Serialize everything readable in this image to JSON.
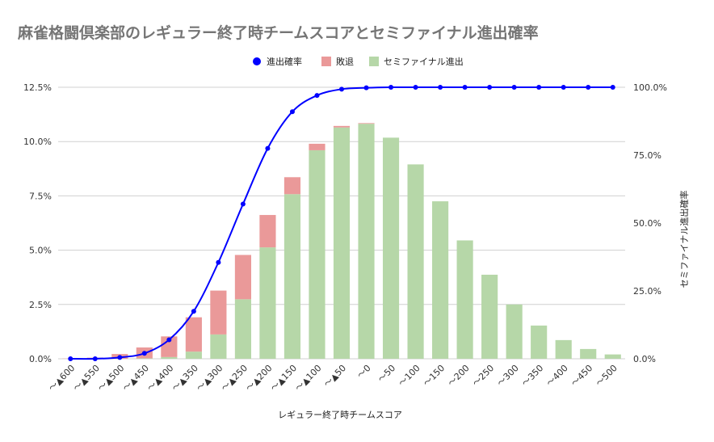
{
  "chart_data": {
    "type": "bar",
    "stacked": true,
    "title": "麻雀格闘倶楽部のレギュラー終了時チームスコアとセミファイナル進出確率",
    "xlabel": "レギュラー終了時チームスコア",
    "ylabel_left": "",
    "ylabel_right": "セミファイナル進出確率",
    "ylim_left": [
      0,
      12.5
    ],
    "ylim_right": [
      0,
      100
    ],
    "left_ticks": [
      "0.0%",
      "2.5%",
      "5.0%",
      "7.5%",
      "10.0%",
      "12.5%"
    ],
    "right_ticks": [
      "0.0%",
      "25.0%",
      "50.0%",
      "75.0%",
      "100.0%"
    ],
    "legend_position": "top",
    "categories": [
      "～▲600",
      "～▲550",
      "～▲500",
      "～▲450",
      "～▲400",
      "～▲350",
      "～▲300",
      "～▲250",
      "～▲200",
      "～▲150",
      "～▲100",
      "～▲50",
      "～0",
      "～50",
      "～100",
      "～150",
      "～200",
      "～250",
      "～300",
      "～350",
      "～400",
      "～450",
      "～500"
    ],
    "series": [
      {
        "name": "セミファイナル進出",
        "kind": "bar",
        "axis": "left",
        "color": "#b6d7a8",
        "values": [
          0,
          0,
          0,
          0.02,
          0.08,
          0.33,
          1.12,
          2.74,
          5.13,
          7.58,
          9.6,
          10.65,
          10.82,
          10.18,
          8.95,
          7.25,
          5.45,
          3.87,
          2.5,
          1.53,
          0.86,
          0.45,
          0.2
        ]
      },
      {
        "name": "敗退",
        "kind": "bar",
        "axis": "left",
        "color": "#ea9999",
        "values": [
          0.01,
          0.05,
          0.22,
          0.5,
          0.95,
          1.58,
          2.02,
          2.04,
          1.49,
          0.78,
          0.3,
          0.07,
          0.03,
          0,
          0,
          0,
          0,
          0,
          0,
          0,
          0,
          0,
          0
        ]
      },
      {
        "name": "進出確率",
        "kind": "line",
        "axis": "right",
        "color": "#0000ff",
        "values": [
          0,
          0,
          0.5,
          2,
          7,
          17.5,
          35.5,
          57,
          77.5,
          91,
          97,
          99.3,
          99.8,
          100,
          100,
          100,
          100,
          100,
          100,
          100,
          100,
          100,
          100
        ]
      }
    ]
  }
}
